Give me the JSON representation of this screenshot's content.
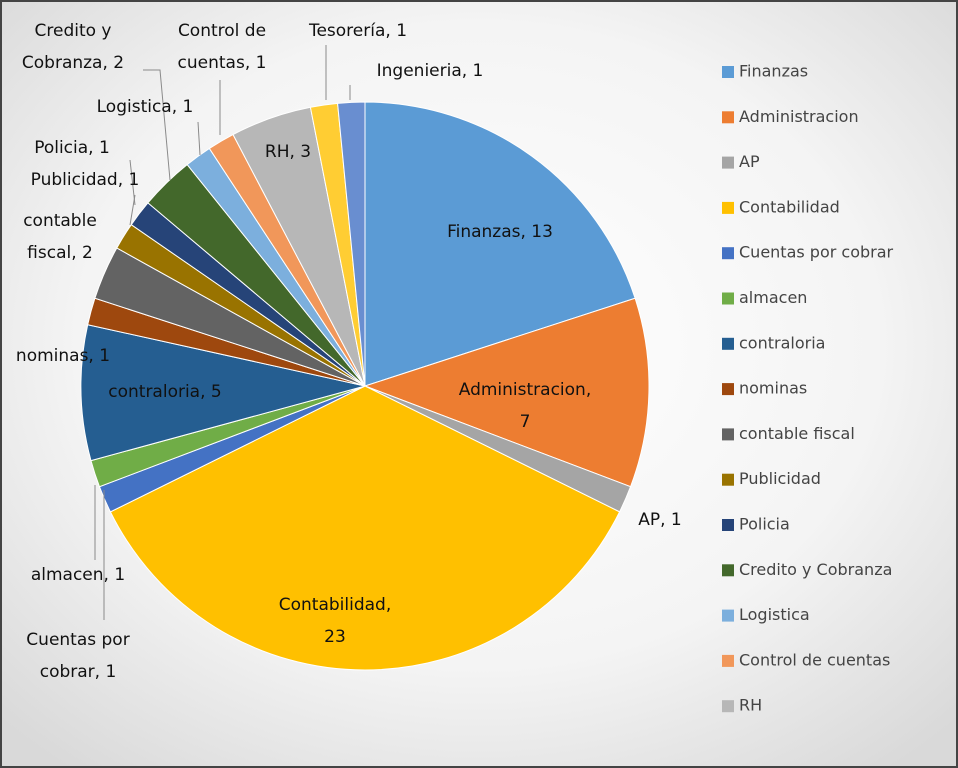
{
  "chart_data": {
    "type": "pie",
    "categories": [
      "Finanzas",
      "Administracion",
      "AP",
      "Contabilidad",
      "Cuentas por cobrar",
      "almacen",
      "contraloria",
      "nominas",
      "contable fiscal",
      "Publicidad",
      "Policia",
      "Credito y Cobranza",
      "Logistica",
      "Control de cuentas",
      "RH",
      "Tesorería",
      "Ingenieria"
    ],
    "values": [
      13,
      7,
      1,
      23,
      1,
      1,
      5,
      1,
      2,
      1,
      1,
      2,
      1,
      1,
      3,
      1,
      1
    ],
    "value_labels": [
      "Finanzas, 13",
      "Administracion, 7",
      "AP, 1",
      "Contabilidad, 23",
      "Cuentas por cobrar, 1",
      "almacen, 1",
      "contraloria, 5",
      "nominas, 1",
      "contable fiscal, 2",
      "Publicidad, 1",
      "Policia, 1",
      "Credito y Cobranza, 2",
      "Logistica, 1",
      "Control de cuentas, 1",
      "RH, 3",
      "Tesorería, 1",
      "Ingenieria, 1"
    ],
    "colors": [
      "#5b9bd5",
      "#ed7d31",
      "#a5a5a5",
      "#ffc000",
      "#4472c4",
      "#70ad47",
      "#255e91",
      "#9e480e",
      "#636363",
      "#997300",
      "#264478",
      "#43682b",
      "#7cafdd",
      "#f1975a",
      "#b7b7b7",
      "#ffcd33",
      "#698ed0"
    ],
    "legend": "right"
  }
}
